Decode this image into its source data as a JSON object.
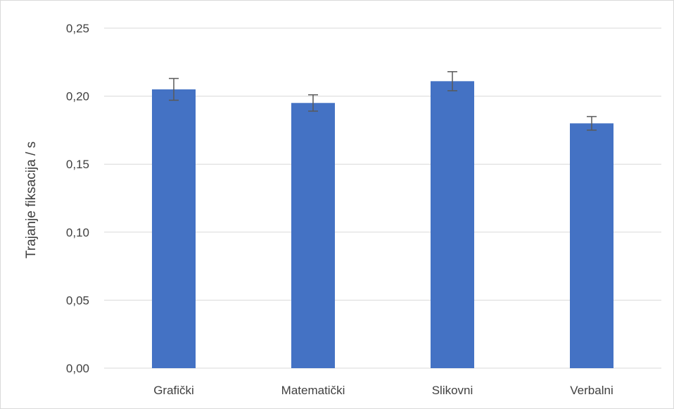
{
  "chart_data": {
    "type": "bar",
    "title": "",
    "xlabel": "",
    "ylabel": "Trajanje fiksacija / s",
    "categories": [
      "Grafički",
      "Matematički",
      "Slikovni",
      "Verbalni"
    ],
    "values": [
      0.205,
      0.195,
      0.211,
      0.18
    ],
    "error": [
      0.008,
      0.006,
      0.007,
      0.005
    ],
    "ylim": [
      0,
      0.25
    ],
    "yticks": [
      0.0,
      0.05,
      0.1,
      0.15,
      0.2,
      0.25
    ],
    "ytick_labels": [
      "0,00",
      "0,05",
      "0,10",
      "0,15",
      "0,20",
      "0,25"
    ],
    "grid": true,
    "legend": "none",
    "colors": {
      "bar": "#4472c4",
      "error_bar": "#595959",
      "grid": "#d9d9d9",
      "text": "#404040"
    }
  }
}
